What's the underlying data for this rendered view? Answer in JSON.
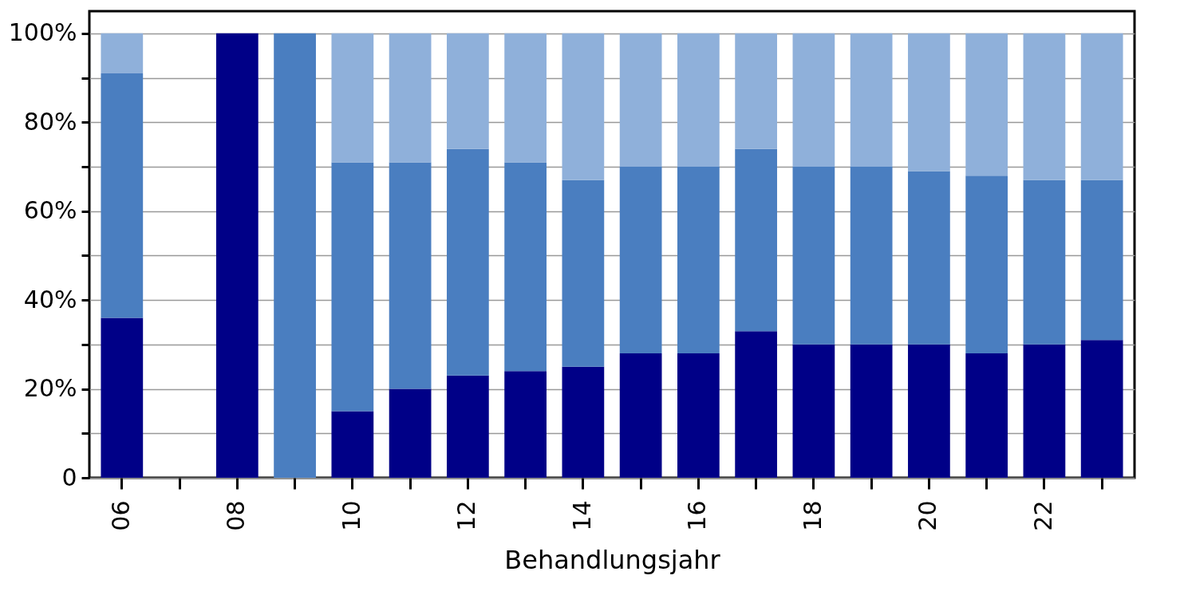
{
  "chart_data": {
    "type": "bar",
    "stacked": true,
    "xlabel": "Behandlungsjahr",
    "categories": [
      "06",
      null,
      "08",
      null,
      "10",
      null,
      "12",
      null,
      "14",
      null,
      "16",
      null,
      "18",
      null,
      "20",
      null,
      "22",
      null
    ],
    "series": [
      {
        "color": "#000087",
        "values": [
          36,
          null,
          100,
          0,
          15,
          20,
          23,
          24,
          25,
          28,
          28,
          33,
          30,
          30,
          30,
          28,
          30,
          31
        ]
      },
      {
        "color": "#4a7ec0",
        "values": [
          55,
          null,
          0,
          100,
          56,
          51,
          51,
          47,
          42,
          42,
          42,
          41,
          40,
          40,
          39,
          40,
          37,
          36
        ]
      },
      {
        "color": "#8fb0da",
        "values": [
          9,
          null,
          0,
          0,
          29,
          29,
          26,
          29,
          33,
          30,
          30,
          26,
          30,
          30,
          31,
          32,
          33,
          33
        ]
      }
    ],
    "ylim": [
      0,
      105
    ],
    "yticks": [
      {
        "value": 0,
        "label": "0"
      },
      {
        "value": 10,
        "label": null
      },
      {
        "value": 20,
        "label": "20%"
      },
      {
        "value": 30,
        "label": null
      },
      {
        "value": 40,
        "label": "40%"
      },
      {
        "value": 50,
        "label": null
      },
      {
        "value": 60,
        "label": "60%"
      },
      {
        "value": 70,
        "label": null
      },
      {
        "value": 80,
        "label": "80%"
      },
      {
        "value": 90,
        "label": null
      },
      {
        "value": 100,
        "label": "100%"
      }
    ],
    "grid": "y"
  }
}
